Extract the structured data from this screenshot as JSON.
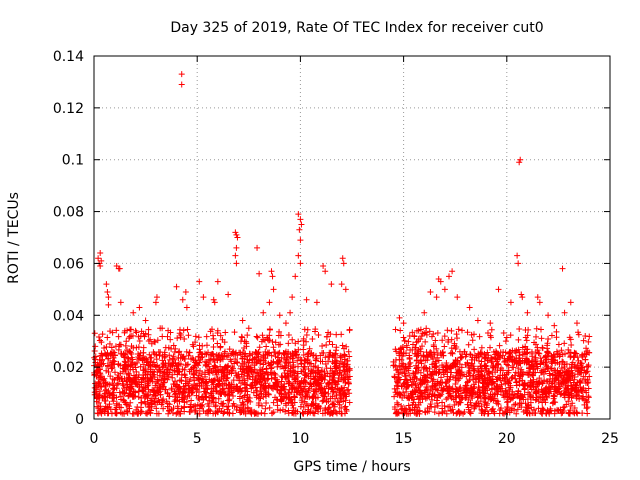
{
  "chart_data": {
    "type": "scatter",
    "title": "Day 325 of 2019, Rate Of TEC Index for receiver cut0",
    "xlabel": "GPS time / hours",
    "ylabel": "ROTI / TECUs",
    "xlim": [
      0,
      25
    ],
    "ylim": [
      0,
      0.14
    ],
    "xticks": [
      "0",
      "5",
      "10",
      "15",
      "20",
      "25"
    ],
    "yticks": [
      "0",
      "0.02",
      "0.04",
      "0.06",
      "0.08",
      "0.1",
      "0.12",
      "0.14"
    ],
    "grid": true,
    "marker": "+",
    "color": "#ff0000",
    "data_gap_hours": [
      12.4,
      14.5
    ],
    "series": [
      {
        "name": "ROTI",
        "points": [
          [
            0.2,
            0.062
          ],
          [
            0.25,
            0.06
          ],
          [
            0.3,
            0.064
          ],
          [
            0.35,
            0.061
          ],
          [
            0.3,
            0.059
          ],
          [
            0.6,
            0.052
          ],
          [
            0.65,
            0.049
          ],
          [
            0.7,
            0.047
          ],
          [
            0.7,
            0.044
          ],
          [
            1.1,
            0.059
          ],
          [
            1.2,
            0.058
          ],
          [
            1.25,
            0.058
          ],
          [
            1.3,
            0.045
          ],
          [
            1.9,
            0.041
          ],
          [
            2.2,
            0.043
          ],
          [
            2.5,
            0.038
          ],
          [
            3.0,
            0.045
          ],
          [
            3.05,
            0.047
          ],
          [
            3.3,
            0.035
          ],
          [
            4.0,
            0.051
          ],
          [
            4.25,
            0.133
          ],
          [
            4.25,
            0.129
          ],
          [
            4.3,
            0.046
          ],
          [
            4.45,
            0.049
          ],
          [
            4.5,
            0.043
          ],
          [
            5.1,
            0.053
          ],
          [
            5.3,
            0.047
          ],
          [
            5.8,
            0.046
          ],
          [
            5.85,
            0.045
          ],
          [
            6.0,
            0.053
          ],
          [
            6.5,
            0.048
          ],
          [
            6.85,
            0.072
          ],
          [
            6.9,
            0.071
          ],
          [
            6.95,
            0.07
          ],
          [
            6.9,
            0.066
          ],
          [
            6.85,
            0.063
          ],
          [
            6.9,
            0.06
          ],
          [
            7.2,
            0.038
          ],
          [
            7.5,
            0.035
          ],
          [
            7.9,
            0.066
          ],
          [
            8.0,
            0.056
          ],
          [
            8.2,
            0.041
          ],
          [
            8.6,
            0.057
          ],
          [
            8.65,
            0.055
          ],
          [
            8.7,
            0.05
          ],
          [
            8.5,
            0.045
          ],
          [
            9.0,
            0.04
          ],
          [
            9.3,
            0.037
          ],
          [
            9.5,
            0.041
          ],
          [
            9.6,
            0.047
          ],
          [
            9.75,
            0.055
          ],
          [
            9.9,
            0.079
          ],
          [
            10.0,
            0.077
          ],
          [
            10.05,
            0.075
          ],
          [
            9.95,
            0.073
          ],
          [
            10.0,
            0.069
          ],
          [
            9.9,
            0.063
          ],
          [
            10.0,
            0.06
          ],
          [
            10.3,
            0.046
          ],
          [
            10.8,
            0.045
          ],
          [
            11.1,
            0.059
          ],
          [
            11.2,
            0.057
          ],
          [
            11.5,
            0.052
          ],
          [
            12.0,
            0.052
          ],
          [
            12.05,
            0.062
          ],
          [
            12.1,
            0.06
          ],
          [
            12.2,
            0.05
          ],
          [
            14.8,
            0.039
          ],
          [
            15.0,
            0.037
          ],
          [
            15.3,
            0.032
          ],
          [
            16.0,
            0.041
          ],
          [
            16.3,
            0.049
          ],
          [
            16.6,
            0.047
          ],
          [
            16.7,
            0.054
          ],
          [
            16.8,
            0.053
          ],
          [
            17.0,
            0.05
          ],
          [
            17.2,
            0.055
          ],
          [
            17.35,
            0.057
          ],
          [
            17.6,
            0.047
          ],
          [
            18.2,
            0.043
          ],
          [
            18.6,
            0.038
          ],
          [
            19.2,
            0.037
          ],
          [
            19.6,
            0.05
          ],
          [
            20.2,
            0.045
          ],
          [
            20.5,
            0.063
          ],
          [
            20.55,
            0.06
          ],
          [
            20.6,
            0.099
          ],
          [
            20.65,
            0.1
          ],
          [
            20.7,
            0.048
          ],
          [
            20.75,
            0.047
          ],
          [
            21.0,
            0.041
          ],
          [
            21.5,
            0.047
          ],
          [
            21.6,
            0.045
          ],
          [
            22.0,
            0.04
          ],
          [
            22.3,
            0.036
          ],
          [
            22.7,
            0.058
          ],
          [
            22.8,
            0.041
          ],
          [
            23.1,
            0.045
          ],
          [
            23.4,
            0.037
          ],
          [
            23.8,
            0.032
          ]
        ],
        "baseline_density": {
          "description_hours": [
            [
              0.0,
              12.4
            ],
            [
              14.5,
              24.0
            ]
          ],
          "typical_range": [
            0.002,
            0.035
          ]
        }
      }
    ]
  }
}
